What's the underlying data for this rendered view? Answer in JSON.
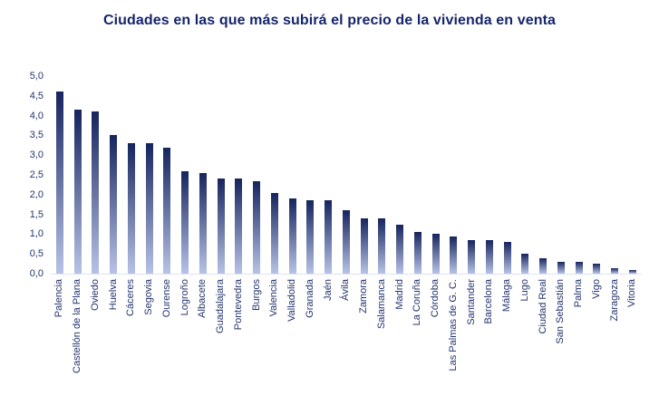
{
  "chart_data": {
    "type": "bar",
    "title": "Ciudades en las que más subirá el precio de la vivienda en venta",
    "categories": [
      "Palencia",
      "Castellón de la Plana",
      "Oviedo",
      "Huelva",
      "Cáceres",
      "Segovia",
      "Ourense",
      "Logroño",
      "Albacete",
      "Guadalajara",
      "Pontevedra",
      "Burgos",
      "Valencia",
      "Valladolid",
      "Granada",
      "Jaén",
      "Ávila",
      "Zamora",
      "Salamanca",
      "Madrid",
      "La Coruña",
      "Córdoba",
      "Las Palmas de G. C.",
      "Santander",
      "Barcelona",
      "Málaga",
      "Lugo",
      "Ciudad Real",
      "San Sebastián",
      "Palma",
      "Vigo",
      "Zaragoza",
      "Vitoria"
    ],
    "values": [
      4.6,
      4.15,
      4.1,
      3.5,
      3.3,
      3.3,
      3.2,
      2.6,
      2.55,
      2.4,
      2.4,
      2.35,
      2.05,
      1.9,
      1.85,
      1.85,
      1.6,
      1.4,
      1.4,
      1.25,
      1.05,
      1.0,
      0.95,
      0.85,
      0.85,
      0.8,
      0.5,
      0.4,
      0.3,
      0.3,
      0.25,
      0.15,
      0.1
    ],
    "xlabel": "",
    "ylabel": "",
    "ylim": [
      0,
      5
    ],
    "ytick_labels_top_to_bottom": [
      "5,0",
      "4,5",
      "4,0",
      "3,5",
      "3,0",
      "2,5",
      "2,0",
      "1,5",
      "1,0",
      "0,5",
      "0,0"
    ],
    "grid": false,
    "legend": false,
    "colors": {
      "title_color": "#15256b",
      "text_color": "#23336e",
      "bar_gradient_top": "#16245f",
      "bar_gradient_bottom": "#b7c3e5",
      "axis_line_color": "#dfe3ee"
    }
  }
}
